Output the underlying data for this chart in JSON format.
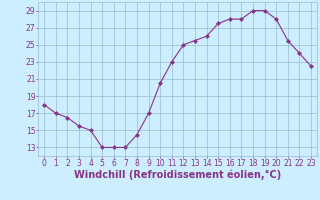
{
  "x": [
    0,
    1,
    2,
    3,
    4,
    5,
    6,
    7,
    8,
    9,
    10,
    11,
    12,
    13,
    14,
    15,
    16,
    17,
    18,
    19,
    20,
    21,
    22,
    23
  ],
  "y": [
    18,
    17,
    16.5,
    15.5,
    15,
    13,
    13,
    13,
    14.5,
    17,
    20.5,
    23,
    25,
    25.5,
    26,
    27.5,
    28,
    28,
    29,
    29,
    28,
    25.5,
    24,
    22.5
  ],
  "line_color": "#883388",
  "marker": "D",
  "marker_size": 2.0,
  "bg_color": "#cceeff",
  "grid_color": "#99bbcc",
  "xlabel": "Windchill (Refroidissement éolien,°C)",
  "xlabel_color": "#883388",
  "xlabel_fontsize": 7,
  "tick_color": "#883388",
  "tick_fontsize": 5.5,
  "ylim": [
    12,
    30
  ],
  "yticks": [
    13,
    15,
    17,
    19,
    21,
    23,
    25,
    27,
    29
  ],
  "xlim": [
    -0.5,
    23.5
  ],
  "xticks": [
    0,
    1,
    2,
    3,
    4,
    5,
    6,
    7,
    8,
    9,
    10,
    11,
    12,
    13,
    14,
    15,
    16,
    17,
    18,
    19,
    20,
    21,
    22,
    23
  ]
}
